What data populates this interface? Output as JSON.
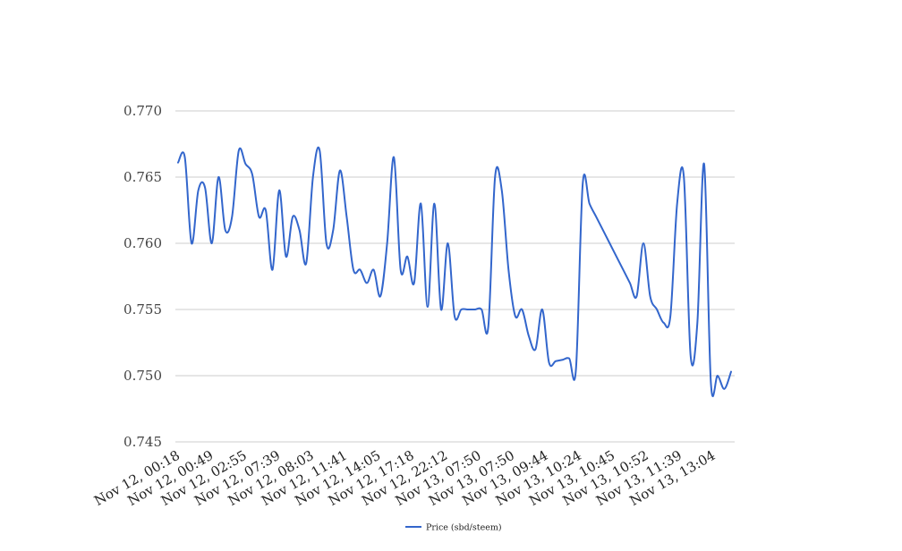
{
  "chart_data": {
    "type": "line",
    "title": "",
    "xlabel": "",
    "ylabel": "",
    "ylim": [
      0.745,
      0.77
    ],
    "y_ticks": [
      "0.745",
      "0.750",
      "0.755",
      "0.760",
      "0.765",
      "0.770"
    ],
    "x_tick_labels": [
      "Nov 12, 00:18",
      "Nov 12, 00:49",
      "Nov 12, 02:55",
      "Nov 12, 07:39",
      "Nov 12, 08:03",
      "Nov 12, 11:41",
      "Nov 12, 14:05",
      "Nov 12, 17:18",
      "Nov 12, 22:12",
      "Nov 13, 07:50",
      "Nov 13, 07:50",
      "Nov 13, 09:44",
      "Nov 13, 10:24",
      "Nov 13, 10:45",
      "Nov 13, 10:52",
      "Nov 13, 11:39",
      "Nov 13, 13:04"
    ],
    "grid": true,
    "legend_position": "bottom",
    "series": [
      {
        "name": "Price (sbd/steem)",
        "color": "#3366cc",
        "values": [
          0.7661,
          0.7665,
          0.76,
          0.764,
          0.7642,
          0.76,
          0.765,
          0.761,
          0.762,
          0.767,
          0.766,
          0.7652,
          0.762,
          0.7625,
          0.758,
          0.764,
          0.759,
          0.762,
          0.761,
          0.7585,
          0.765,
          0.767,
          0.76,
          0.761,
          0.7655,
          0.762,
          0.758,
          0.758,
          0.757,
          0.758,
          0.756,
          0.76,
          0.7665,
          0.758,
          0.759,
          0.757,
          0.763,
          0.7552,
          0.763,
          0.755,
          0.76,
          0.7545,
          0.755,
          0.755,
          0.755,
          0.755,
          0.7537,
          0.765,
          0.764,
          0.758,
          0.7545,
          0.755,
          0.753,
          0.752,
          0.755,
          0.751,
          0.7511,
          0.7512,
          0.7513,
          0.7505,
          0.7645,
          0.763,
          0.762,
          0.761,
          0.76,
          0.759,
          0.758,
          0.757,
          0.756,
          0.76,
          0.756,
          0.755,
          0.754,
          0.7545,
          0.763,
          0.765,
          0.7515,
          0.754,
          0.766,
          0.7495,
          0.75,
          0.749,
          0.7503
        ]
      }
    ]
  }
}
